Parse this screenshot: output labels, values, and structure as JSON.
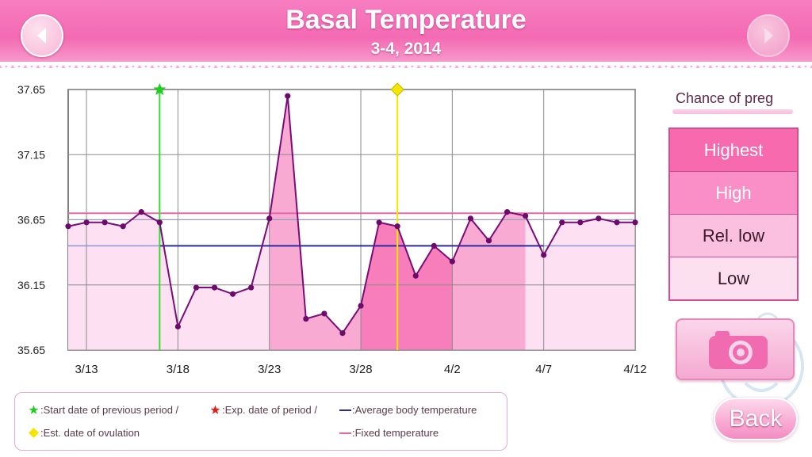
{
  "header": {
    "title": "Basal Temperature",
    "subtitle": "3-4, 2014"
  },
  "colors": {
    "header_pink": "#f36ab3",
    "line_purple": "#7a0c78",
    "avg_line": "#2b2ba0",
    "fixed_line": "#e36aa9",
    "start_marker": "#22cc22",
    "ovulation_marker": "#f5e600"
  },
  "chart_data": {
    "type": "area",
    "x": [
      "3/12",
      "3/13",
      "3/14",
      "3/15",
      "3/16",
      "3/17",
      "3/18",
      "3/19",
      "3/20",
      "3/21",
      "3/22",
      "3/23",
      "3/24",
      "3/25",
      "3/26",
      "3/27",
      "3/28",
      "3/29",
      "3/30",
      "3/31",
      "4/1",
      "4/2",
      "4/3",
      "4/4",
      "4/5",
      "4/6",
      "4/7",
      "4/8",
      "4/9",
      "4/10",
      "4/11",
      "4/12"
    ],
    "series": [
      {
        "values": [
          36.6,
          36.63,
          36.63,
          36.6,
          36.71,
          36.63,
          35.83,
          36.13,
          36.13,
          36.08,
          36.13,
          36.66,
          37.6,
          35.89,
          35.93,
          35.78,
          35.99,
          36.63,
          36.6,
          36.22,
          36.45,
          36.33,
          36.66,
          36.49,
          36.71,
          36.68,
          36.38,
          36.63,
          36.63,
          36.66,
          36.63,
          36.63
        ]
      }
    ],
    "ylim": [
      35.65,
      37.65
    ],
    "y_ticks": [
      "37.65",
      "37.15",
      "36.65",
      "36.15",
      "35.65"
    ],
    "x_ticks": [
      "3/13",
      "3/18",
      "3/23",
      "3/28",
      "4/2",
      "4/7",
      "4/12"
    ],
    "average_temperature": 36.45,
    "fixed_temperature": 36.7,
    "start_of_previous_period": "3/17",
    "est_ovulation": "3/30",
    "pregnancy_chance_bands": [
      {
        "from": "3/12",
        "to": "3/18",
        "level": "Low"
      },
      {
        "from": "3/18",
        "to": "3/23",
        "level": "Low"
      },
      {
        "from": "3/23",
        "to": "3/28",
        "level": "High"
      },
      {
        "from": "3/28",
        "to": "4/2",
        "level": "Highest"
      },
      {
        "from": "4/2",
        "to": "4/6",
        "level": "High"
      },
      {
        "from": "4/6",
        "to": "4/12",
        "level": "Low"
      }
    ],
    "grid": true
  },
  "legend": {
    "start_period": ":Start date of previous period /",
    "exp_period": ":Exp. date of period /",
    "avg_temp": ":Average body temperature",
    "ovulation": ":Est. date of ovulation",
    "fixed_temp": ":Fixed temperature"
  },
  "chance": {
    "title": "Chance of preg",
    "levels": [
      "Highest",
      "High",
      "Rel. low",
      "Low"
    ]
  },
  "buttons": {
    "back": "Back",
    "prev_icon": "left-arrow-icon",
    "next_icon": "right-arrow-icon",
    "camera_icon": "camera-icon"
  }
}
